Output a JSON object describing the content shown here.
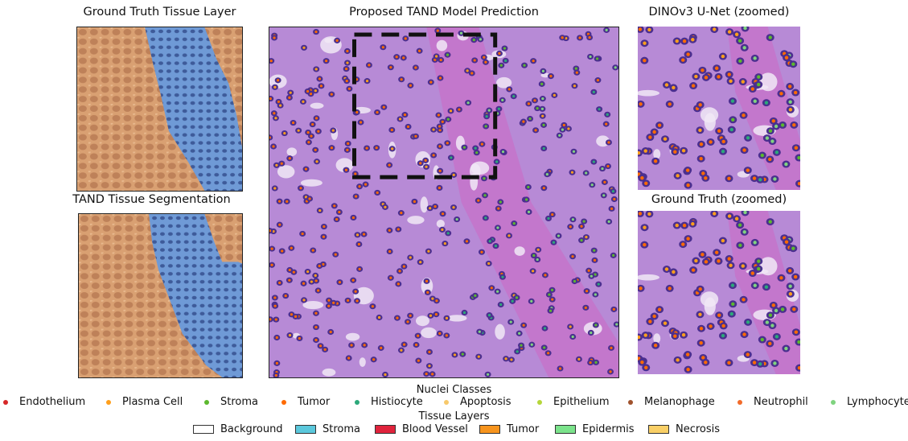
{
  "titles": {
    "gt_tissue": "Ground Truth Tissue Layer",
    "tand_tissue": "TAND Tissue Segmentation",
    "tand_pred": "Proposed TAND Model Prediction",
    "dino_zoom": "DINOv3 U-Net (zoomed)",
    "gt_zoom": "Ground Truth (zoomed)"
  },
  "legend": {
    "nuclei_title": "Nuclei Classes",
    "nuclei": [
      {
        "label": "Endothelium",
        "color": "#d62728"
      },
      {
        "label": "Plasma Cell",
        "color": "#ff9f1c"
      },
      {
        "label": "Stroma",
        "color": "#5cb82e"
      },
      {
        "label": "Tumor",
        "color": "#ff6a00"
      },
      {
        "label": "Histiocyte",
        "color": "#2ca87a"
      },
      {
        "label": "Apoptosis",
        "color": "#f7c96b"
      },
      {
        "label": "Epithelium",
        "color": "#b5d63a"
      },
      {
        "label": "Melanophage",
        "color": "#a0522d"
      },
      {
        "label": "Neutrophil",
        "color": "#f26b2a"
      },
      {
        "label": "Lymphocyte",
        "color": "#7fd37f"
      }
    ],
    "tissue_title": "Tissue Layers",
    "tissue": [
      {
        "label": "Background",
        "color": "#ffffff"
      },
      {
        "label": "Stroma",
        "color": "#5bc8dc"
      },
      {
        "label": "Blood Vessel",
        "color": "#e0233c"
      },
      {
        "label": "Tumor",
        "color": "#f7941d"
      },
      {
        "label": "Epidermis",
        "color": "#7be38b"
      },
      {
        "label": "Necrosis",
        "color": "#f9cf66"
      }
    ]
  },
  "colors": {
    "tumor_tissue": "#d9a072",
    "stroma_tissue": "#6f9ad6",
    "he_background": "#b78ad6",
    "nucleus": "#4b2f8f",
    "zoom_box": "#111111"
  }
}
